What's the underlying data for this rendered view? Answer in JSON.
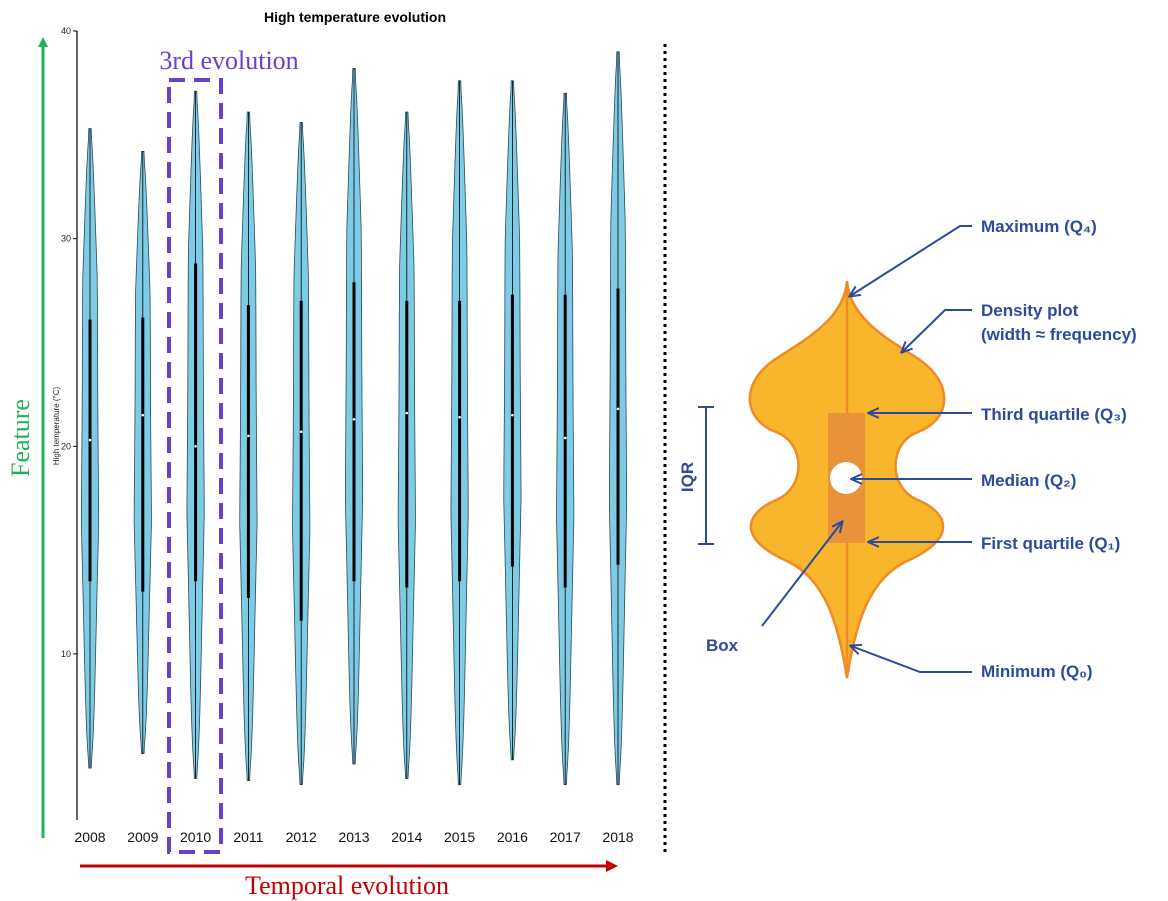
{
  "chart_data": [
    {
      "type": "violin",
      "title": "High temperature evolution",
      "ylabel": "High temperature (°C)",
      "xlabel": "",
      "ylim": [
        2,
        40
      ],
      "yticks": [
        "10",
        "20",
        "30",
        "40"
      ],
      "grid": false,
      "legend": "none",
      "fill_color": "#7ecbe6",
      "categories": [
        "2008",
        "2009",
        "2010",
        "2011",
        "2012",
        "2013",
        "2014",
        "2015",
        "2016",
        "2017",
        "2018"
      ],
      "series": [
        {
          "min": [
            4.5,
            5.2,
            4.0,
            3.9,
            3.7,
            4.7,
            4.0,
            3.7,
            4.9,
            3.7,
            3.7
          ],
          "q1": [
            13.5,
            13.0,
            13.5,
            12.7,
            11.6,
            13.5,
            13.2,
            13.5,
            14.2,
            13.2,
            14.3
          ],
          "median": [
            20.3,
            21.5,
            20.0,
            20.5,
            20.7,
            21.3,
            21.6,
            21.4,
            21.5,
            20.4,
            21.8
          ],
          "q3": [
            26.1,
            26.2,
            28.8,
            26.8,
            27.0,
            27.9,
            27.0,
            27.0,
            27.3,
            27.3,
            27.6
          ],
          "max": [
            35.3,
            34.2,
            37.1,
            36.1,
            35.6,
            38.2,
            36.1,
            37.6,
            37.6,
            37.0,
            39.0
          ]
        }
      ]
    }
  ],
  "annotations": {
    "y_arrow_label": "Feature",
    "x_arrow_label": "Temporal evolution",
    "highlight_label": "3rd evolution",
    "highlight_category": "2010",
    "colors": {
      "feature_arrow": "#1fb35a",
      "temporal_arrow": "#c40000",
      "highlight_box": "#6a3fd0",
      "violin_fill": "#7ecbe6",
      "diagram_fill": "#f8b62d",
      "diagram_edge": "#f08a24",
      "diagram_box": "#e8923a",
      "anno_blue": "#2d4a9c"
    }
  },
  "diagram": {
    "labels": {
      "maximum": "Maximum (Q₄)",
      "density_line1": "Density plot",
      "density_line2": "(width ≈ frequency)",
      "third_quartile": "Third quartile (Q₃)",
      "median": "Median (Q₂)",
      "first_quartile": "First quartile (Q₁)",
      "minimum": "Minimum (Q₀)",
      "box": "Box",
      "iqr": "IQR"
    }
  }
}
